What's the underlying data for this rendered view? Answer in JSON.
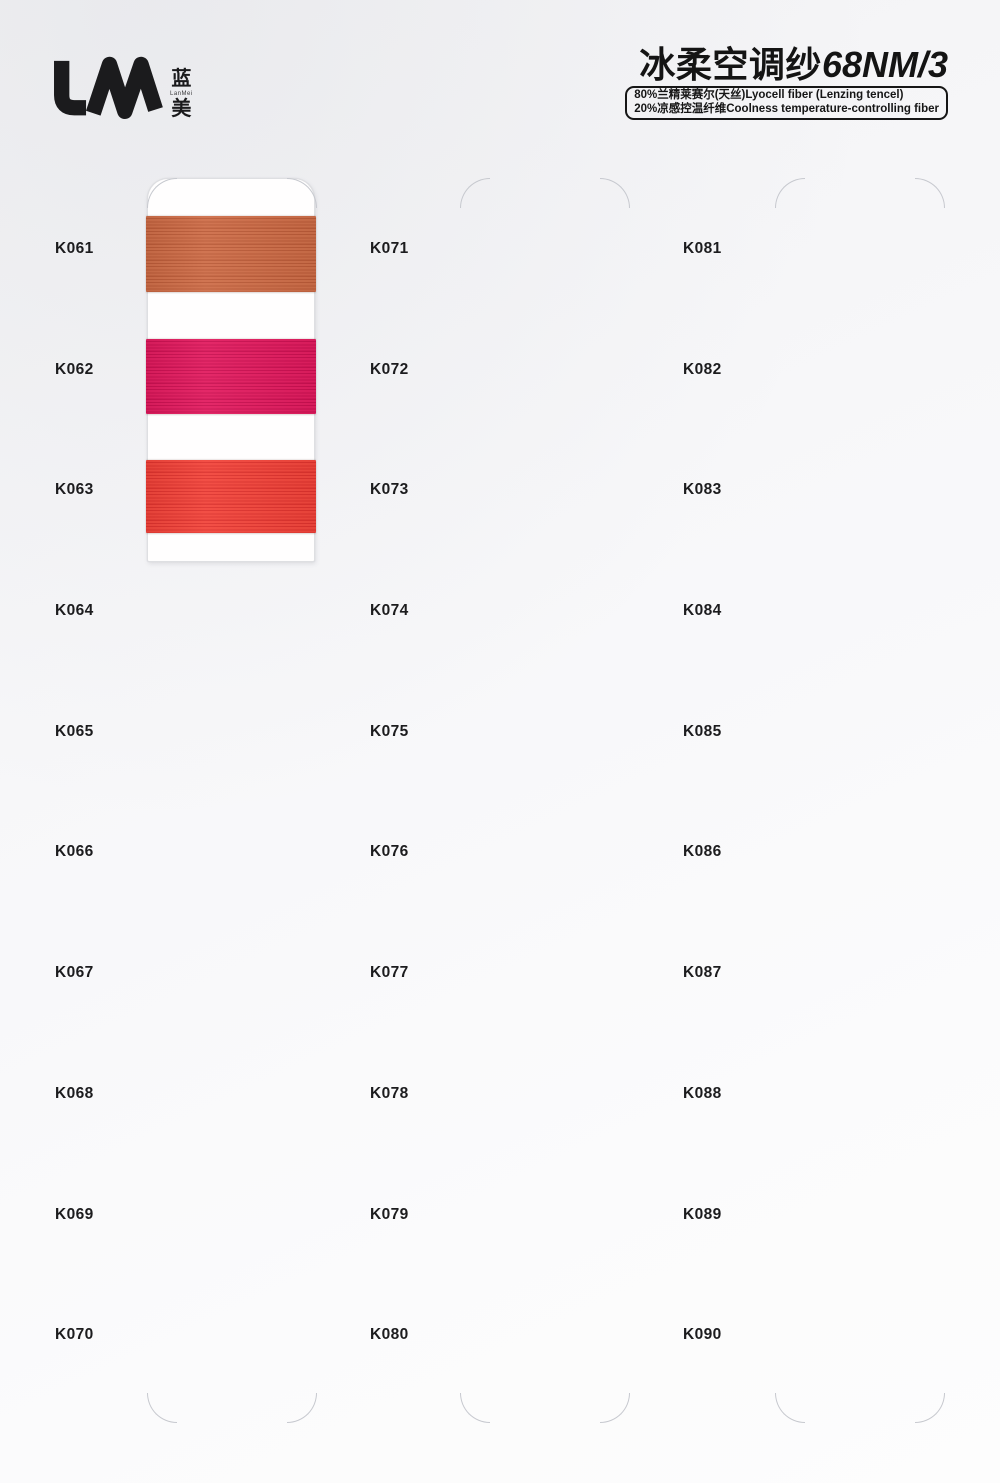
{
  "header": {
    "logo": {
      "letters": "LM",
      "cn_top": "蓝",
      "cn_bottom": "美",
      "latin": "LanMei"
    },
    "product": {
      "title_cn": "冰柔空调纱",
      "title_spec": "68NM/3",
      "composition": [
        "80%兰精莱赛尔(天丝)Lyocell fiber (Lenzing tencel)",
        "20%凉感控温纤维Coolness temperature-controlling fiber"
      ]
    }
  },
  "swatch_card": {
    "samples": [
      {
        "code": "K061",
        "color": "#ce6e49",
        "stripe_color": "#ba5a37"
      },
      {
        "code": "K062",
        "color": "#e21d60",
        "stripe_color": "#ca0f50"
      },
      {
        "code": "K063",
        "color": "#f2463c",
        "stripe_color": "#de322d"
      }
    ]
  },
  "grid": {
    "columns": [
      [
        "K061",
        "K062",
        "K063",
        "K064",
        "K065",
        "K066",
        "K067",
        "K068",
        "K069",
        "K070"
      ],
      [
        "K071",
        "K072",
        "K073",
        "K074",
        "K075",
        "K076",
        "K077",
        "K078",
        "K079",
        "K080"
      ],
      [
        "K081",
        "K082",
        "K083",
        "K084",
        "K085",
        "K086",
        "K087",
        "K088",
        "K089",
        "K090"
      ]
    ]
  }
}
